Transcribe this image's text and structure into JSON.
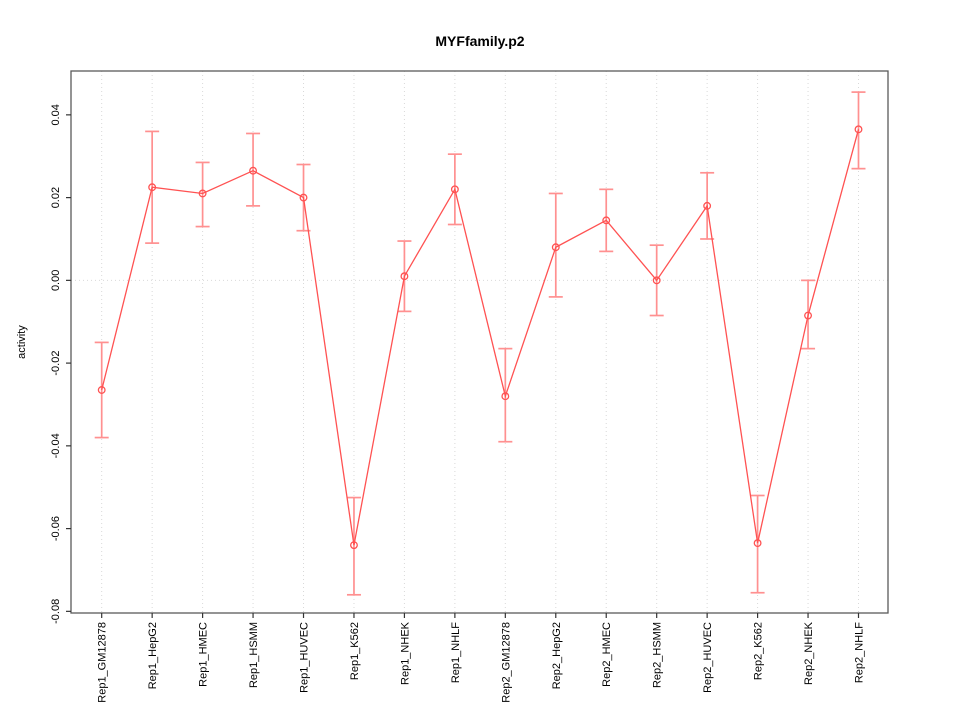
{
  "chart_data": {
    "type": "line",
    "title": "MYFfamily.p2",
    "xlabel": "",
    "ylabel": "activity",
    "categories": [
      "Rep1_GM12878",
      "Rep1_HepG2",
      "Rep1_HMEC",
      "Rep1_HSMM",
      "Rep1_HUVEC",
      "Rep1_K562",
      "Rep1_NHEK",
      "Rep1_NHLF",
      "Rep2_GM12878",
      "Rep2_HepG2",
      "Rep2_HMEC",
      "Rep2_HSMM",
      "Rep2_HUVEC",
      "Rep2_K562",
      "Rep2_NHEK",
      "Rep2_NHLF"
    ],
    "series": [
      {
        "name": "activity",
        "values": [
          -0.0265,
          0.0225,
          0.021,
          0.0265,
          0.02,
          -0.064,
          0.001,
          0.022,
          -0.028,
          0.008,
          0.0145,
          0.0,
          0.018,
          -0.0635,
          -0.0085,
          0.0365
        ],
        "upper": [
          -0.015,
          0.036,
          0.0285,
          0.0355,
          0.028,
          -0.0525,
          0.0095,
          0.0305,
          -0.0165,
          0.021,
          0.022,
          0.0085,
          0.026,
          -0.052,
          0.0,
          0.0455
        ],
        "lower": [
          -0.038,
          0.009,
          0.013,
          0.018,
          0.012,
          -0.076,
          -0.0075,
          0.0135,
          -0.039,
          -0.004,
          0.007,
          -0.0085,
          0.01,
          -0.0755,
          -0.0165,
          0.027
        ]
      }
    ],
    "yticks": {
      "values": [
        0.04,
        0.02,
        0.0,
        -0.02,
        -0.04,
        -0.06,
        -0.08
      ],
      "labels": [
        "0.04",
        "0.02",
        "0.00",
        "-0.02",
        "-0.04",
        "-0.06",
        "-0.08"
      ]
    },
    "ylim": [
      -0.0804,
      0.0506
    ],
    "zero_line": 0.0,
    "grid": {
      "vertical": "dotted line at every category",
      "horizontal": "dotted line at 0 only"
    },
    "legend": "none",
    "marker": "open-circle",
    "error_bars": true,
    "colors": {
      "line": "#ff5252",
      "error_bar": "#ff9090",
      "grid": "#d9d9d9",
      "frame": "#5a5a5a",
      "tick": "#333333",
      "text": "#000000",
      "background": "#ffffff"
    }
  }
}
